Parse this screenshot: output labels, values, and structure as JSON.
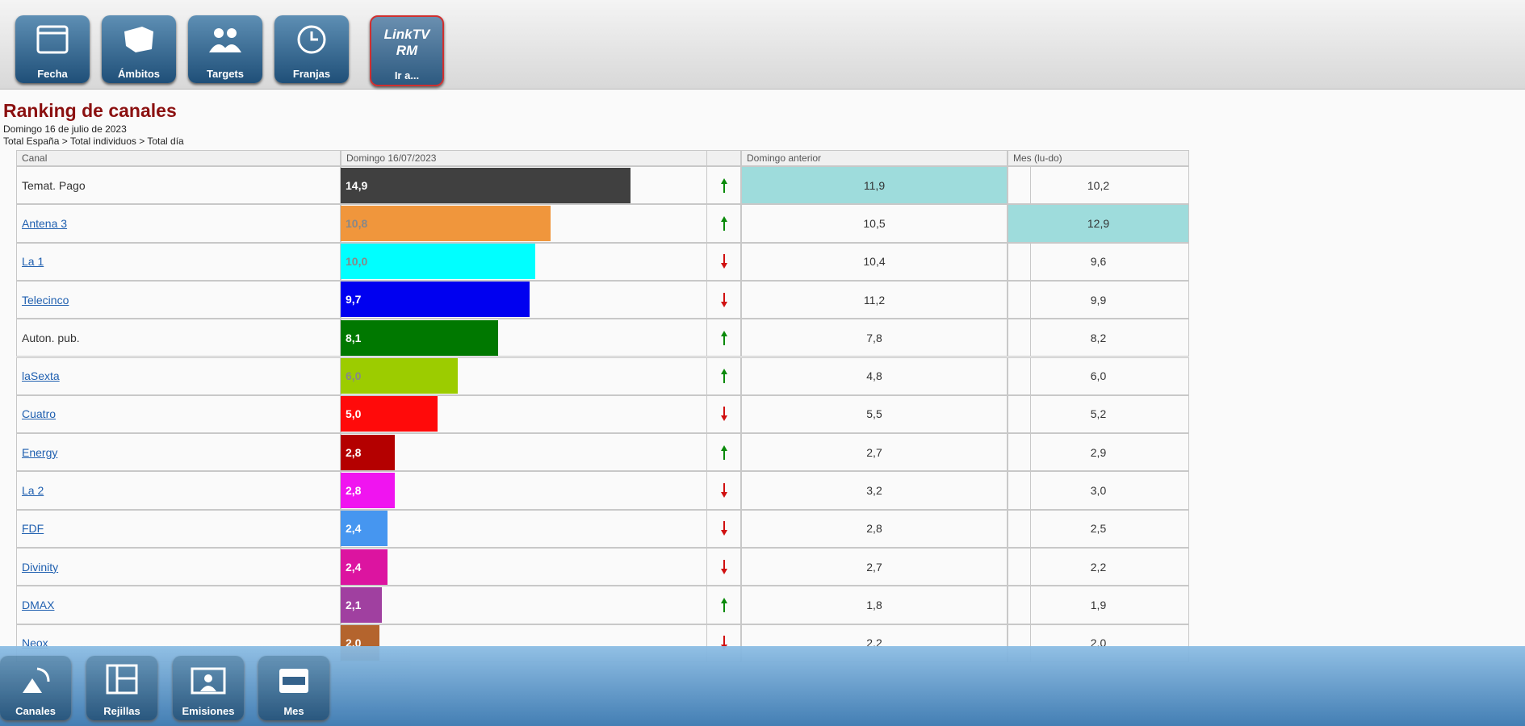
{
  "toolbar": {
    "buttons": [
      "Fecha",
      "Ámbitos",
      "Targets",
      "Franjas"
    ],
    "link_button": {
      "logo": "LinkTV",
      "sub": "RM",
      "label": "Ir a..."
    }
  },
  "header": {
    "title": "Ranking de canales",
    "date": "Domingo 16 de julio de 2023",
    "filters": "Total España > Total individuos > Total día"
  },
  "table": {
    "columns": {
      "channel": "Canal",
      "current": "Domingo 16/07/2023",
      "previous": "Domingo anterior",
      "month": "Mes (lu-do)"
    },
    "rows": [
      {
        "channel": "Temat. Pago",
        "link": false,
        "value": 14.9,
        "value_label": "14,9",
        "color": "#404040",
        "trend": "up",
        "previous": "11,9",
        "month": "10,2",
        "highlight": "previous"
      },
      {
        "channel": "Antena 3",
        "link": true,
        "value": 10.8,
        "value_label": "10,8",
        "color": "#f0963c",
        "trend": "up",
        "previous": "10,5",
        "month": "12,9",
        "highlight": "month"
      },
      {
        "channel": "La 1",
        "link": true,
        "value": 10.0,
        "value_label": "10,0",
        "color": "#00ffff",
        "trend": "down",
        "previous": "10,4",
        "month": "9,6"
      },
      {
        "channel": "Telecinco",
        "link": true,
        "value": 9.7,
        "value_label": "9,7",
        "color": "#0000f0",
        "trend": "down",
        "previous": "11,2",
        "month": "9,9"
      },
      {
        "channel": "Auton. pub.",
        "link": false,
        "value": 8.1,
        "value_label": "8,1",
        "color": "#007800",
        "trend": "up",
        "previous": "7,8",
        "month": "8,2"
      },
      {
        "channel": "laSexta",
        "link": true,
        "value": 6.0,
        "value_label": "6,0",
        "color": "#9ccc00",
        "trend": "up",
        "previous": "4,8",
        "month": "6,0"
      },
      {
        "channel": "Cuatro",
        "link": true,
        "value": 5.0,
        "value_label": "5,0",
        "color": "#ff0a0a",
        "trend": "down",
        "previous": "5,5",
        "month": "5,2"
      },
      {
        "channel": "Energy",
        "link": true,
        "value": 2.8,
        "value_label": "2,8",
        "color": "#b40000",
        "trend": "up",
        "previous": "2,7",
        "month": "2,9"
      },
      {
        "channel": "La 2",
        "link": true,
        "value": 2.8,
        "value_label": "2,8",
        "color": "#f014f0",
        "trend": "down",
        "previous": "3,2",
        "month": "3,0"
      },
      {
        "channel": "FDF",
        "link": true,
        "value": 2.4,
        "value_label": "2,4",
        "color": "#4696f0",
        "trend": "down",
        "previous": "2,8",
        "month": "2,5"
      },
      {
        "channel": "Divinity",
        "link": true,
        "value": 2.4,
        "value_label": "2,4",
        "color": "#dc14a0",
        "trend": "down",
        "previous": "2,7",
        "month": "2,2"
      },
      {
        "channel": "DMAX",
        "link": true,
        "value": 2.1,
        "value_label": "2,1",
        "color": "#a040a0",
        "trend": "up",
        "previous": "1,8",
        "month": "1,9"
      },
      {
        "channel": "Neox",
        "link": true,
        "value": 2.0,
        "value_label": "2,0",
        "color": "#b4642d",
        "trend": "down",
        "previous": "2,2",
        "month": "2,0"
      }
    ]
  },
  "bottom_bar": {
    "buttons": [
      "Canales",
      "Rejillas",
      "Emisiones",
      "Mes"
    ]
  }
}
